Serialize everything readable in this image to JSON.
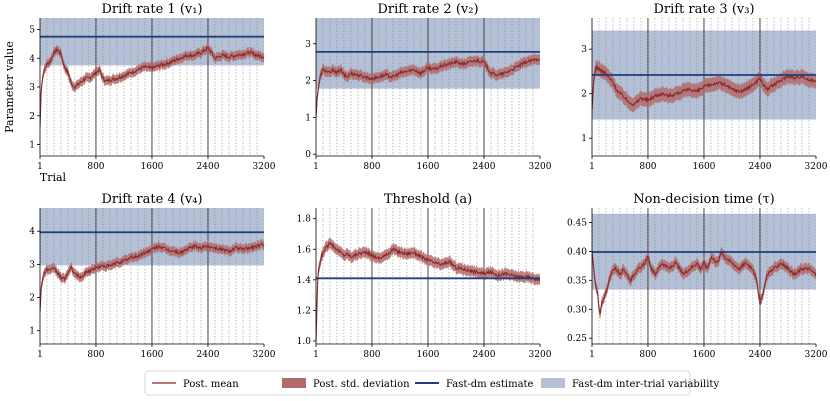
{
  "chart_data": [
    {
      "type": "line",
      "title": "Drift rate 1 (v₁)",
      "ylabel": "Parameter value",
      "xlabel": "Trial",
      "xlim": [
        1,
        3200
      ],
      "ylim": [
        0.6,
        5.4
      ],
      "xticks": [
        1,
        800,
        1600,
        2400,
        3200
      ],
      "yticks": [
        1,
        2,
        3,
        4,
        5
      ],
      "estimate": 4.75,
      "band": [
        3.75,
        5.4
      ],
      "mean": [
        [
          1,
          1.6
        ],
        [
          20,
          3.0
        ],
        [
          50,
          3.5
        ],
        [
          100,
          3.8
        ],
        [
          150,
          3.9
        ],
        [
          200,
          4.2
        ],
        [
          250,
          4.3
        ],
        [
          300,
          4.15
        ],
        [
          350,
          3.7
        ],
        [
          400,
          3.5
        ],
        [
          450,
          3.1
        ],
        [
          500,
          3.0
        ],
        [
          550,
          3.1
        ],
        [
          600,
          3.2
        ],
        [
          650,
          3.3
        ],
        [
          700,
          3.3
        ],
        [
          750,
          3.4
        ],
        [
          800,
          3.5
        ],
        [
          850,
          3.6
        ],
        [
          900,
          3.3
        ],
        [
          950,
          3.2
        ],
        [
          1000,
          3.25
        ],
        [
          1100,
          3.3
        ],
        [
          1200,
          3.4
        ],
        [
          1300,
          3.5
        ],
        [
          1400,
          3.6
        ],
        [
          1500,
          3.7
        ],
        [
          1600,
          3.65
        ],
        [
          1700,
          3.75
        ],
        [
          1800,
          3.8
        ],
        [
          1900,
          3.9
        ],
        [
          2000,
          4.0
        ],
        [
          2100,
          4.1
        ],
        [
          2200,
          4.1
        ],
        [
          2300,
          4.2
        ],
        [
          2400,
          4.35
        ],
        [
          2450,
          4.2
        ],
        [
          2500,
          4.0
        ],
        [
          2600,
          4.1
        ],
        [
          2700,
          4.05
        ],
        [
          2800,
          4.1
        ],
        [
          2900,
          4.15
        ],
        [
          3000,
          4.2
        ],
        [
          3100,
          4.1
        ],
        [
          3200,
          4.05
        ]
      ],
      "sd": 0.16
    },
    {
      "type": "line",
      "title": "Drift rate 2 (v₂)",
      "xlim": [
        1,
        3200
      ],
      "ylim": [
        -0.05,
        3.7
      ],
      "xticks": [
        1,
        800,
        1600,
        2400,
        3200
      ],
      "yticks": [
        0,
        1,
        2,
        3
      ],
      "estimate": 2.78,
      "band": [
        1.78,
        3.7
      ],
      "mean": [
        [
          1,
          1.0
        ],
        [
          20,
          1.6
        ],
        [
          60,
          2.1
        ],
        [
          100,
          2.3
        ],
        [
          150,
          2.25
        ],
        [
          200,
          2.2
        ],
        [
          250,
          2.3
        ],
        [
          300,
          2.2
        ],
        [
          350,
          2.3
        ],
        [
          400,
          2.15
        ],
        [
          450,
          2.1
        ],
        [
          500,
          2.2
        ],
        [
          600,
          2.15
        ],
        [
          700,
          2.1
        ],
        [
          800,
          2.05
        ],
        [
          900,
          2.1
        ],
        [
          1000,
          2.15
        ],
        [
          1100,
          2.1
        ],
        [
          1200,
          2.2
        ],
        [
          1300,
          2.25
        ],
        [
          1400,
          2.3
        ],
        [
          1500,
          2.2
        ],
        [
          1600,
          2.35
        ],
        [
          1700,
          2.3
        ],
        [
          1800,
          2.4
        ],
        [
          1900,
          2.45
        ],
        [
          2000,
          2.5
        ],
        [
          2100,
          2.45
        ],
        [
          2200,
          2.5
        ],
        [
          2300,
          2.55
        ],
        [
          2400,
          2.5
        ],
        [
          2450,
          2.35
        ],
        [
          2500,
          2.2
        ],
        [
          2600,
          2.15
        ],
        [
          2700,
          2.2
        ],
        [
          2800,
          2.3
        ],
        [
          2900,
          2.4
        ],
        [
          3000,
          2.5
        ],
        [
          3100,
          2.55
        ],
        [
          3200,
          2.6
        ]
      ],
      "sd": 0.14
    },
    {
      "type": "line",
      "title": "Drift rate 3 (v₃)",
      "xlim": [
        1,
        3200
      ],
      "ylim": [
        0.6,
        3.7
      ],
      "xticks": [
        1,
        800,
        1600,
        2400,
        3200
      ],
      "yticks": [
        1,
        2,
        3
      ],
      "estimate": 2.42,
      "band": [
        1.42,
        3.42
      ],
      "mean": [
        [
          1,
          1.6
        ],
        [
          30,
          2.4
        ],
        [
          60,
          2.6
        ],
        [
          100,
          2.55
        ],
        [
          150,
          2.5
        ],
        [
          200,
          2.45
        ],
        [
          250,
          2.35
        ],
        [
          300,
          2.25
        ],
        [
          350,
          2.1
        ],
        [
          400,
          2.0
        ],
        [
          450,
          1.95
        ],
        [
          500,
          1.85
        ],
        [
          550,
          1.8
        ],
        [
          600,
          1.75
        ],
        [
          700,
          1.9
        ],
        [
          800,
          1.85
        ],
        [
          900,
          1.95
        ],
        [
          1000,
          2.0
        ],
        [
          1100,
          1.95
        ],
        [
          1200,
          2.0
        ],
        [
          1300,
          2.05
        ],
        [
          1400,
          2.1
        ],
        [
          1500,
          2.05
        ],
        [
          1600,
          2.15
        ],
        [
          1700,
          2.2
        ],
        [
          1800,
          2.25
        ],
        [
          1900,
          2.2
        ],
        [
          2000,
          2.1
        ],
        [
          2100,
          2.05
        ],
        [
          2200,
          2.1
        ],
        [
          2300,
          2.2
        ],
        [
          2400,
          2.35
        ],
        [
          2450,
          2.2
        ],
        [
          2500,
          2.1
        ],
        [
          2600,
          2.2
        ],
        [
          2700,
          2.3
        ],
        [
          2800,
          2.4
        ],
        [
          2900,
          2.35
        ],
        [
          3000,
          2.4
        ],
        [
          3100,
          2.3
        ],
        [
          3200,
          2.3
        ]
      ],
      "sd": 0.16
    },
    {
      "type": "line",
      "title": "Drift rate 4 (v₄)",
      "xlim": [
        1,
        3200
      ],
      "ylim": [
        0.6,
        4.7
      ],
      "xticks": [
        1,
        800,
        1600,
        2400,
        3200
      ],
      "yticks": [
        1,
        2,
        3,
        4
      ],
      "estimate": 3.97,
      "band": [
        2.97,
        4.7
      ],
      "mean": [
        [
          1,
          1.6
        ],
        [
          20,
          2.3
        ],
        [
          50,
          2.7
        ],
        [
          100,
          2.85
        ],
        [
          150,
          2.8
        ],
        [
          200,
          2.9
        ],
        [
          250,
          2.75
        ],
        [
          300,
          2.6
        ],
        [
          350,
          2.55
        ],
        [
          400,
          2.75
        ],
        [
          450,
          2.9
        ],
        [
          500,
          2.7
        ],
        [
          550,
          2.65
        ],
        [
          600,
          2.6
        ],
        [
          650,
          2.75
        ],
        [
          700,
          2.8
        ],
        [
          800,
          2.9
        ],
        [
          900,
          2.95
        ],
        [
          1000,
          2.95
        ],
        [
          1100,
          3.05
        ],
        [
          1200,
          3.1
        ],
        [
          1300,
          3.2
        ],
        [
          1400,
          3.25
        ],
        [
          1500,
          3.35
        ],
        [
          1600,
          3.45
        ],
        [
          1700,
          3.55
        ],
        [
          1800,
          3.45
        ],
        [
          1900,
          3.4
        ],
        [
          2000,
          3.35
        ],
        [
          2100,
          3.45
        ],
        [
          2200,
          3.55
        ],
        [
          2300,
          3.5
        ],
        [
          2400,
          3.55
        ],
        [
          2500,
          3.5
        ],
        [
          2600,
          3.45
        ],
        [
          2700,
          3.4
        ],
        [
          2800,
          3.5
        ],
        [
          2900,
          3.45
        ],
        [
          3000,
          3.5
        ],
        [
          3100,
          3.55
        ],
        [
          3200,
          3.6
        ]
      ],
      "sd": 0.14
    },
    {
      "type": "line",
      "title": "Threshold (a)",
      "xlim": [
        1,
        3200
      ],
      "ylim": [
        0.98,
        1.87
      ],
      "xticks": [
        1,
        800,
        1600,
        2400,
        3200
      ],
      "yticks": [
        1.0,
        1.2,
        1.4,
        1.6,
        1.8
      ],
      "ytick_labels": [
        "1.0",
        "1.2",
        "1.4",
        "1.6",
        "1.8"
      ],
      "estimate": 1.41,
      "band": null,
      "mean": [
        [
          1,
          1.0
        ],
        [
          30,
          1.45
        ],
        [
          80,
          1.55
        ],
        [
          120,
          1.6
        ],
        [
          170,
          1.62
        ],
        [
          200,
          1.65
        ],
        [
          250,
          1.62
        ],
        [
          300,
          1.6
        ],
        [
          350,
          1.58
        ],
        [
          400,
          1.56
        ],
        [
          450,
          1.57
        ],
        [
          500,
          1.55
        ],
        [
          600,
          1.57
        ],
        [
          700,
          1.58
        ],
        [
          800,
          1.56
        ],
        [
          900,
          1.54
        ],
        [
          1000,
          1.56
        ],
        [
          1100,
          1.6
        ],
        [
          1200,
          1.58
        ],
        [
          1300,
          1.57
        ],
        [
          1400,
          1.58
        ],
        [
          1500,
          1.55
        ],
        [
          1600,
          1.53
        ],
        [
          1700,
          1.51
        ],
        [
          1800,
          1.5
        ],
        [
          1900,
          1.52
        ],
        [
          2000,
          1.48
        ],
        [
          2100,
          1.47
        ],
        [
          2200,
          1.46
        ],
        [
          2300,
          1.45
        ],
        [
          2400,
          1.44
        ],
        [
          2500,
          1.45
        ],
        [
          2600,
          1.43
        ],
        [
          2700,
          1.44
        ],
        [
          2800,
          1.43
        ],
        [
          2900,
          1.42
        ],
        [
          3000,
          1.42
        ],
        [
          3100,
          1.41
        ],
        [
          3200,
          1.4
        ]
      ],
      "sd": 0.035
    },
    {
      "type": "line",
      "title": "Non-decision time (τ)",
      "xlim": [
        1,
        3200
      ],
      "ylim": [
        0.24,
        0.475
      ],
      "xticks": [
        1,
        800,
        1600,
        2400,
        3200
      ],
      "yticks": [
        0.25,
        0.3,
        0.35,
        0.4,
        0.45
      ],
      "ytick_labels": [
        "0.25",
        "0.30",
        "0.35",
        "0.40",
        "0.45"
      ],
      "estimate": 0.399,
      "band": [
        0.334,
        0.465
      ],
      "mean": [
        [
          1,
          0.4
        ],
        [
          20,
          0.38
        ],
        [
          50,
          0.34
        ],
        [
          80,
          0.33
        ],
        [
          100,
          0.3
        ],
        [
          120,
          0.29
        ],
        [
          140,
          0.31
        ],
        [
          170,
          0.32
        ],
        [
          200,
          0.33
        ],
        [
          250,
          0.35
        ],
        [
          300,
          0.37
        ],
        [
          350,
          0.37
        ],
        [
          400,
          0.36
        ],
        [
          450,
          0.37
        ],
        [
          500,
          0.36
        ],
        [
          550,
          0.35
        ],
        [
          600,
          0.36
        ],
        [
          650,
          0.37
        ],
        [
          700,
          0.37
        ],
        [
          750,
          0.38
        ],
        [
          800,
          0.39
        ],
        [
          850,
          0.37
        ],
        [
          900,
          0.36
        ],
        [
          950,
          0.37
        ],
        [
          1000,
          0.38
        ],
        [
          1100,
          0.37
        ],
        [
          1200,
          0.38
        ],
        [
          1300,
          0.36
        ],
        [
          1400,
          0.37
        ],
        [
          1500,
          0.38
        ],
        [
          1550,
          0.37
        ],
        [
          1600,
          0.38
        ],
        [
          1650,
          0.37
        ],
        [
          1700,
          0.39
        ],
        [
          1800,
          0.38
        ],
        [
          1850,
          0.4
        ],
        [
          1900,
          0.39
        ],
        [
          2000,
          0.38
        ],
        [
          2100,
          0.37
        ],
        [
          2200,
          0.38
        ],
        [
          2300,
          0.37
        ],
        [
          2350,
          0.35
        ],
        [
          2400,
          0.31
        ],
        [
          2450,
          0.33
        ],
        [
          2500,
          0.36
        ],
        [
          2600,
          0.37
        ],
        [
          2700,
          0.38
        ],
        [
          2800,
          0.37
        ],
        [
          2900,
          0.36
        ],
        [
          3000,
          0.37
        ],
        [
          3100,
          0.37
        ],
        [
          3200,
          0.36
        ]
      ],
      "sd": 0.009
    }
  ],
  "legend": [
    {
      "label": "Post. mean",
      "kind": "line",
      "color": "#8b2b2b"
    },
    {
      "label": "Post. std. deviation",
      "kind": "patch",
      "color": "#b06c6c"
    },
    {
      "label": "Fast-dm estimate",
      "kind": "line",
      "color": "#203e7c"
    },
    {
      "label": "Fast-dm inter-trial variability",
      "kind": "patch",
      "color": "#b4c0d6"
    }
  ],
  "colors": {
    "mean": "#8b2b2b",
    "sd": "#b06c6c",
    "estimate": "#203e7c",
    "band": "#b4c0d6",
    "vline": "#444444",
    "dotted": "#888888"
  }
}
